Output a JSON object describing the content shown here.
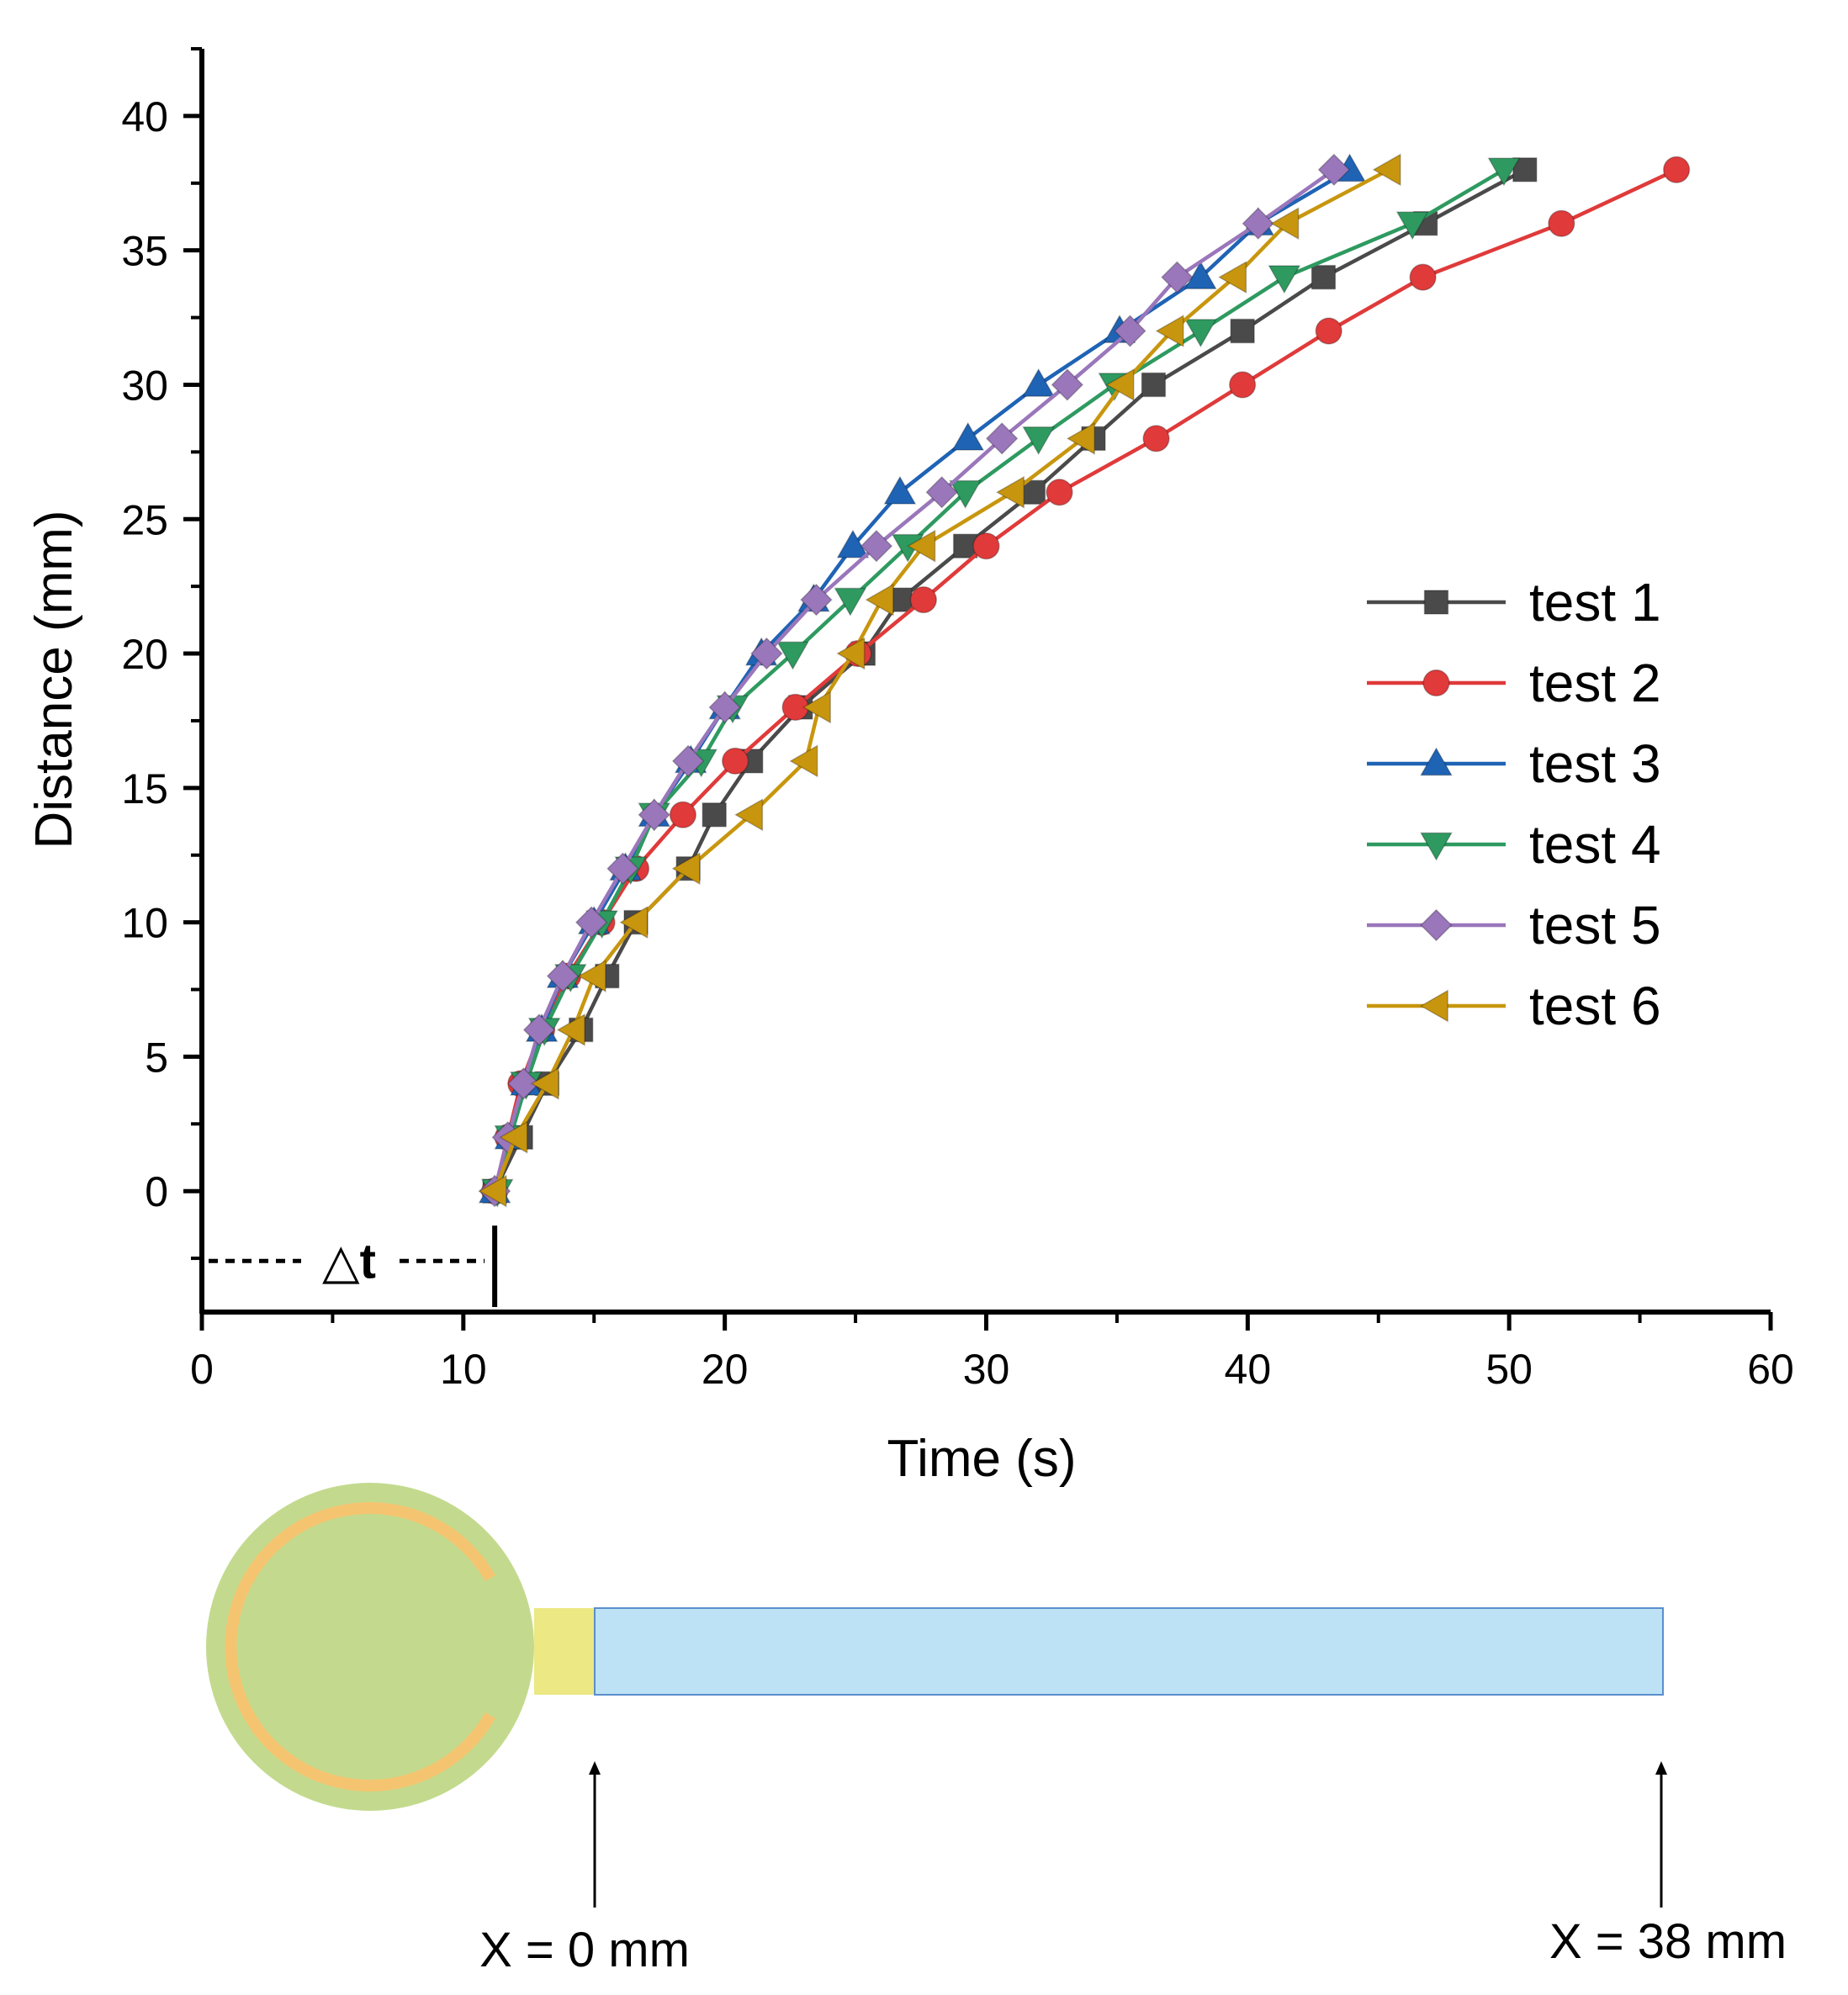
{
  "chart_data": {
    "type": "line",
    "title": "",
    "xlabel": "Time (s)",
    "ylabel": "Distance (mm)",
    "xlim": [
      0,
      60
    ],
    "ylim": [
      -4.5,
      42.5
    ],
    "xticks": [
      0,
      10,
      20,
      30,
      40,
      50,
      60
    ],
    "yticks": [
      0,
      5,
      10,
      15,
      20,
      25,
      30,
      35,
      40
    ],
    "grid": false,
    "legend_position": "right",
    "series": [
      {
        "name": "test 1",
        "color": "#4a4a4a",
        "marker": "square",
        "x": [
          11.2,
          12.2,
          13.2,
          14.5,
          15.5,
          16.6,
          18.6,
          19.6,
          21.0,
          22.9,
          25.3,
          26.7,
          29.2,
          31.8,
          34.1,
          36.4,
          39.8,
          42.9,
          46.8,
          50.6
        ],
        "y": [
          0,
          2,
          4,
          6,
          8,
          10,
          12,
          14,
          16,
          18,
          20,
          22,
          24,
          26,
          28,
          30,
          32,
          34,
          36,
          38
        ]
      },
      {
        "name": "test 2",
        "color": "#e03a3a",
        "marker": "circle",
        "x": [
          11.2,
          11.7,
          12.2,
          13.0,
          14.0,
          15.3,
          16.6,
          18.4,
          20.4,
          22.7,
          25.1,
          27.6,
          30.0,
          32.8,
          36.5,
          39.8,
          43.1,
          46.7,
          52.0,
          56.4
        ],
        "y": [
          0,
          2,
          4,
          6,
          8,
          10,
          12,
          14,
          16,
          18,
          20,
          22,
          24,
          26,
          28,
          30,
          32,
          34,
          36,
          38
        ]
      },
      {
        "name": "test 3",
        "color": "#1f63b5",
        "marker": "triangle-up",
        "x": [
          11.2,
          11.8,
          12.4,
          13.0,
          13.8,
          15.0,
          16.2,
          17.3,
          18.7,
          20.0,
          21.4,
          23.4,
          24.9,
          26.7,
          29.3,
          32.0,
          35.1,
          38.2,
          40.4,
          43.9
        ],
        "y": [
          0,
          2,
          4,
          6,
          8,
          10,
          12,
          14,
          16,
          18,
          20,
          22,
          24,
          26,
          28,
          30,
          32,
          34,
          36,
          38
        ]
      },
      {
        "name": "test 4",
        "color": "#2e9a60",
        "marker": "triangle-down",
        "x": [
          11.3,
          11.8,
          12.4,
          13.1,
          14.1,
          15.3,
          16.4,
          17.3,
          19.1,
          20.3,
          22.6,
          24.8,
          27.0,
          29.2,
          32.0,
          34.9,
          38.2,
          41.4,
          46.3,
          49.8
        ],
        "y": [
          0,
          2,
          4,
          6,
          8,
          10,
          12,
          14,
          16,
          18,
          20,
          22,
          24,
          26,
          28,
          30,
          32,
          34,
          36,
          38
        ]
      },
      {
        "name": "test 5",
        "color": "#9a76bb",
        "marker": "diamond",
        "x": [
          11.2,
          11.7,
          12.3,
          12.9,
          13.8,
          14.9,
          16.1,
          17.3,
          18.6,
          20.0,
          21.6,
          23.5,
          25.8,
          28.3,
          30.6,
          33.1,
          35.5,
          37.3,
          40.4,
          43.3
        ],
        "y": [
          0,
          2,
          4,
          6,
          8,
          10,
          12,
          14,
          16,
          18,
          20,
          22,
          24,
          26,
          28,
          30,
          32,
          34,
          36,
          38
        ]
      },
      {
        "name": "test 6",
        "color": "#c8960e",
        "marker": "triangle-left",
        "x": [
          11.2,
          12.0,
          13.2,
          14.2,
          15.0,
          16.6,
          18.6,
          21.0,
          23.1,
          23.6,
          24.9,
          26.0,
          27.6,
          31.0,
          33.7,
          35.2,
          37.1,
          39.5,
          41.5,
          45.4
        ],
        "y": [
          0,
          2,
          4,
          6,
          8,
          10,
          12,
          14,
          16,
          18,
          20,
          22,
          24,
          26,
          28,
          30,
          32,
          34,
          36,
          38
        ]
      }
    ],
    "annotations": {
      "delta_t_label": "△t",
      "delta_t_x": 11.2
    }
  },
  "schematic": {
    "start_label": "X = 0 mm",
    "end_label": "X = 38 mm",
    "colors": {
      "pad": "#c3da8e",
      "ring": "#f5c470",
      "junction": "#ece883",
      "channel": "#bde2f5",
      "channel_border": "#5b8fcc"
    }
  }
}
